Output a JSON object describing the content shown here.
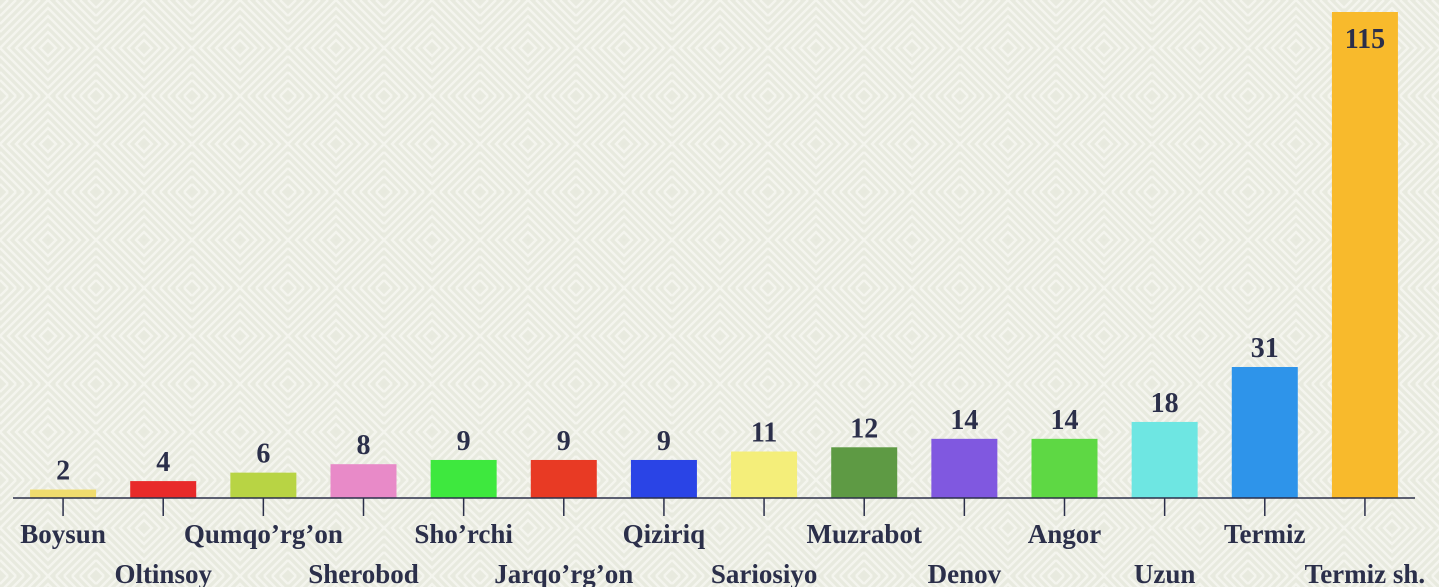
{
  "chart_data": {
    "type": "bar",
    "categories": [
      "Boysun",
      "Oltinsoy",
      "Qumqo’rg’on",
      "Sherobod",
      "Sho’rchi",
      "Jarqo’rg’on",
      "Qiziriq",
      "Sariosiyo",
      "Muzrabot",
      "Denov",
      "Angor",
      "Uzun",
      "Termiz",
      "Termiz sh."
    ],
    "values": [
      2,
      4,
      6,
      8,
      9,
      9,
      9,
      11,
      12,
      14,
      14,
      18,
      31,
      115
    ],
    "colors": [
      "#f0dc6e",
      "#e82a2a",
      "#b8d444",
      "#e88ac8",
      "#3ee83e",
      "#e83a24",
      "#2a44e6",
      "#f4ee7a",
      "#5e9a44",
      "#8058e0",
      "#5ed844",
      "#6ee6e2",
      "#2e94ea",
      "#f8ba2c"
    ]
  }
}
